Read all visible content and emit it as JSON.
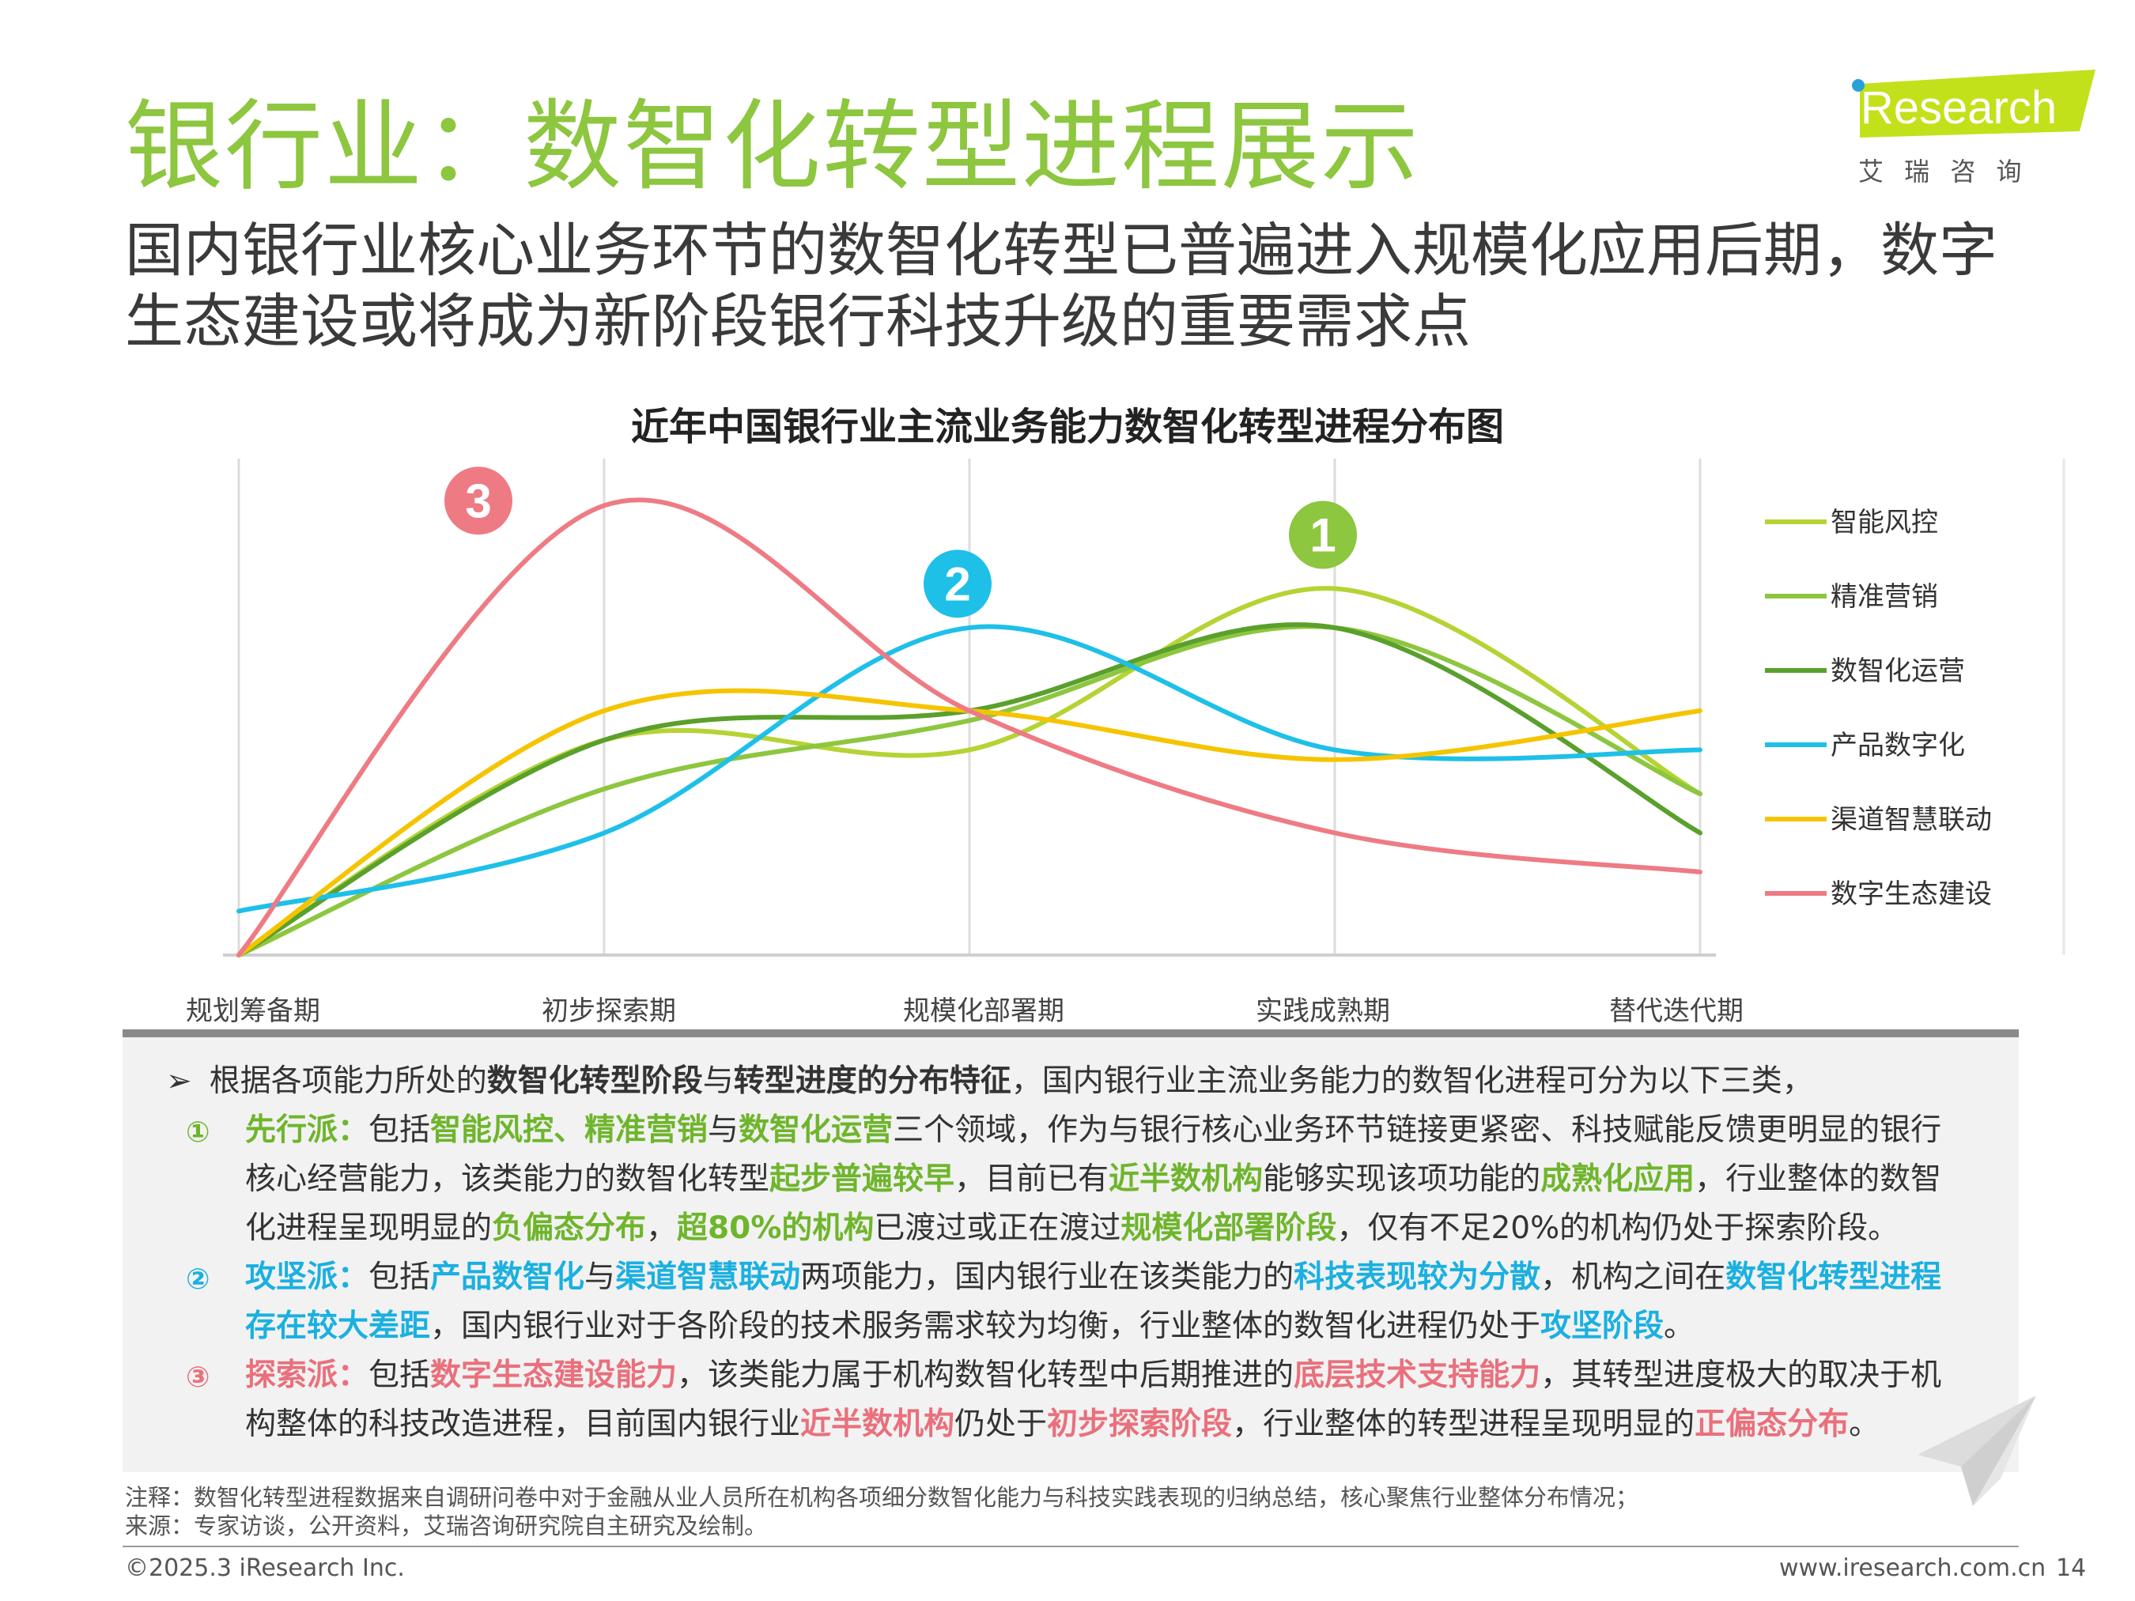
{
  "header": {
    "title": "银行业：数智化转型进程展示",
    "subtitle": "国内银行业核心业务环节的数智化转型已普遍进入规模化应用后期，数字生态建设或将成为新阶段银行科技升级的重要需求点",
    "logo_text": "iResearch",
    "logo_cn": "艾 瑞 咨 询"
  },
  "chart_data": {
    "type": "line",
    "title": "近年中国银行业主流业务能力数智化转型进程分布图",
    "categories": [
      "规划筹备期",
      "初步探索期",
      "规模化部署期",
      "实践成熟期",
      "替代迭代期"
    ],
    "ylim": [
      0,
      100
    ],
    "grid": "vertical",
    "legend_position": "right",
    "series": [
      {
        "name": "智能风控",
        "color": "#b5d334",
        "values": [
          0,
          44,
          42,
          75,
          33
        ]
      },
      {
        "name": "精准营销",
        "color": "#8dc63f",
        "values": [
          0,
          34,
          48,
          67,
          33
        ]
      },
      {
        "name": "数智化运营",
        "color": "#5aa02c",
        "values": [
          0,
          44,
          50,
          67,
          25
        ]
      },
      {
        "name": "产品数字化",
        "color": "#1ec0e8",
        "values": [
          9,
          25,
          67,
          42,
          42
        ]
      },
      {
        "name": "渠道智慧联动",
        "color": "#f5c400",
        "values": [
          0,
          50,
          50,
          40,
          50
        ]
      },
      {
        "name": "数字生态建设",
        "color": "#ee7b84",
        "values": [
          0,
          92,
          50,
          25,
          17
        ]
      }
    ],
    "markers": [
      {
        "label": "1",
        "color": "#8dc63f"
      },
      {
        "label": "2",
        "color": "#1ec0e8"
      },
      {
        "label": "3",
        "color": "#ee7b84"
      }
    ]
  },
  "summary": {
    "intro": [
      "根据各项能力所处的",
      "数智化转型阶段",
      "与",
      "转型进度的分布特征",
      "，国内银行业主流业务能力的数智化进程可分为以下三类，"
    ],
    "item1_no": "①",
    "item1_l1": [
      "先行派：",
      "包括",
      "智能风控、精准营销",
      "与",
      "数智化运营",
      "三个领域，作为与银行核心业务环节链接更紧密、科技赋能反馈更明显的银行"
    ],
    "item1_l2": [
      "核心经营能力，该类能力的数智化转型",
      "起步普遍较早",
      "，目前已有",
      "近半数机构",
      "能够实现该项功能的",
      "成熟化应用",
      "，行业整体的数智"
    ],
    "item1_l3": [
      "化进程呈现明显的",
      "负偏态分布",
      "，",
      "超80%的机构",
      "已渡过或正在渡过",
      "规模化部署阶段",
      "，仅有不足20%的机构仍处于探索阶段。"
    ],
    "item2_no": "②",
    "item2_l1": [
      "攻坚派：",
      "包括",
      "产品数智化",
      "与",
      "渠道智慧联动",
      "两项能力，国内银行业在该类能力的",
      "科技表现较为分散",
      "，机构之间在",
      "数智化转型进程"
    ],
    "item2_l2": [
      "存在较大差距",
      "，国内银行业对于各阶段的技术服务需求较为均衡，行业整体的数智化进程仍处于",
      "攻坚阶段",
      "。"
    ],
    "item3_no": "③",
    "item3_l1": [
      "探索派：",
      "包括",
      "数字生态建设能力",
      "，该类能力属于机构数智化转型中后期推进的",
      "底层技术支持能力",
      "，其转型进度极大的取决于机"
    ],
    "item3_l2": [
      "构整体的科技改造进程，目前国内银行业",
      "近半数机构",
      "仍处于",
      "初步探索阶段",
      "，行业整体的转型进程呈现明显的",
      "正偏态分布",
      "。"
    ]
  },
  "notes": {
    "note": "注释：数智化转型进程数据来自调研问卷中对于金融从业人员所在机构各项细分数智化能力与科技实践表现的归纳总结，核心聚焦行业整体分布情况；",
    "source": "来源：专家访谈，公开资料，艾瑞咨询研究院自主研究及绘制。"
  },
  "footer": {
    "copyright": "©2025.3 iResearch Inc.",
    "website": "www.iresearch.com.cn",
    "page": "14"
  }
}
